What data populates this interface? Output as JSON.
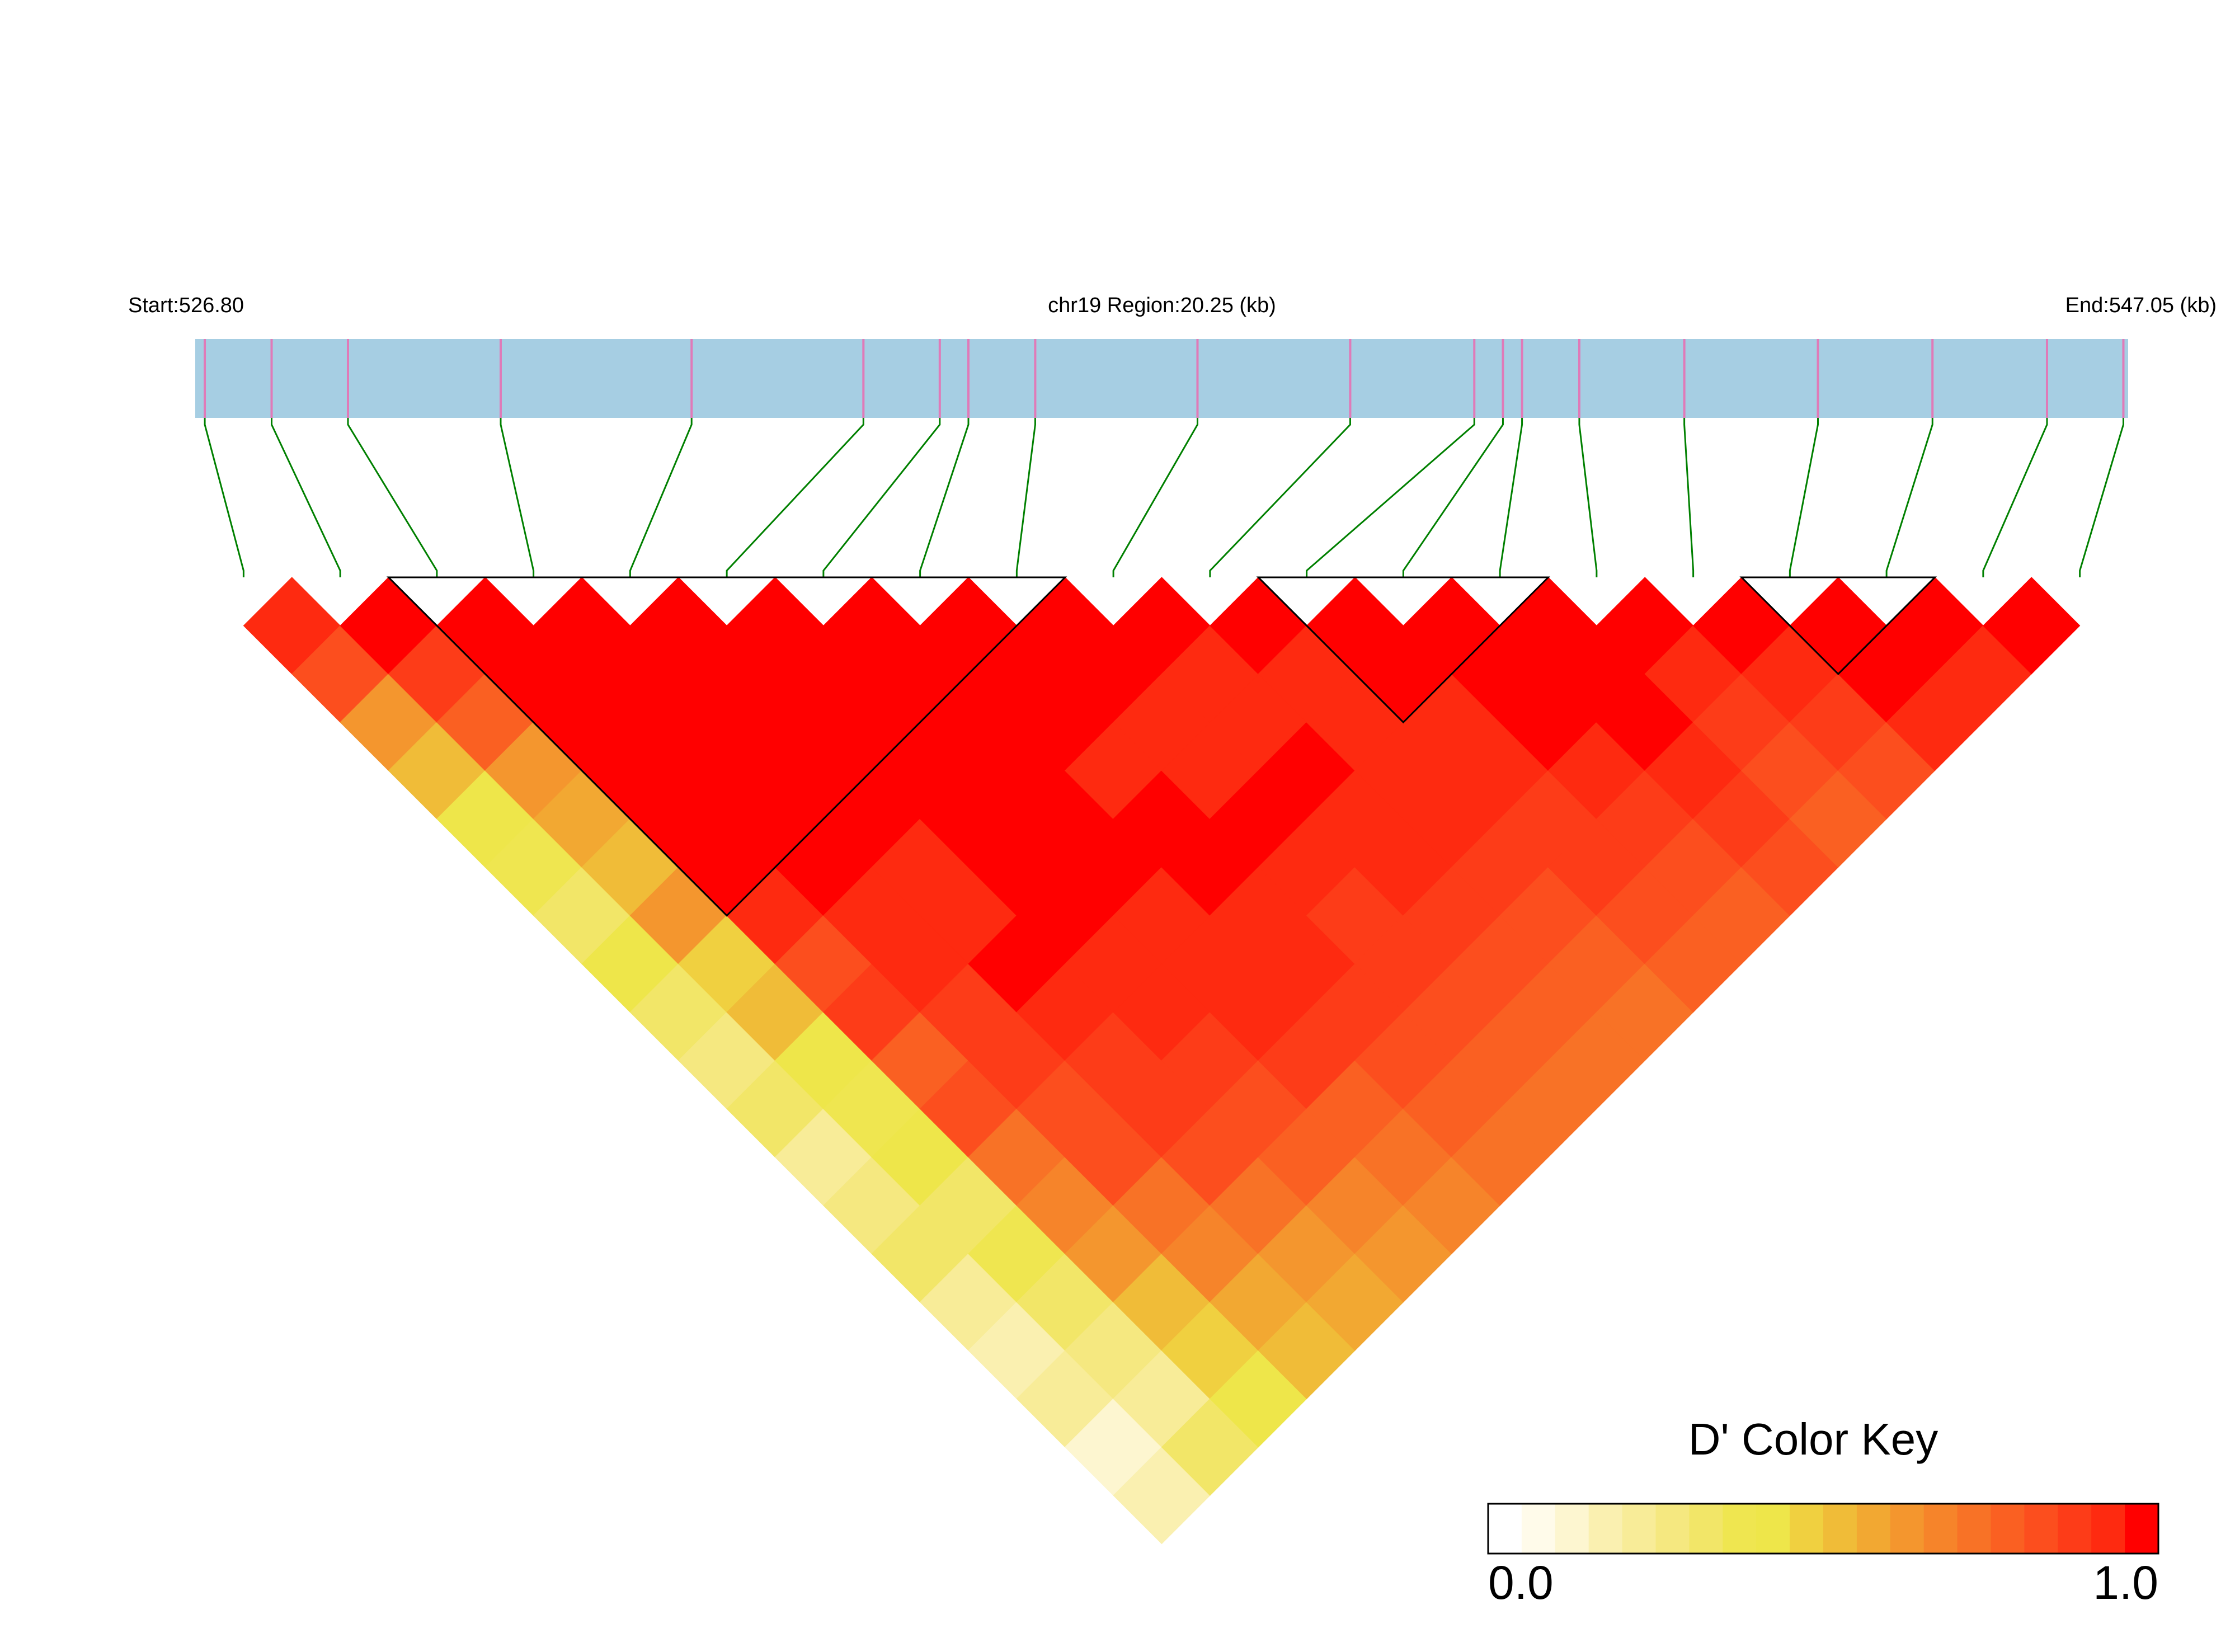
{
  "chart_data": {
    "type": "ld_heatmap",
    "region": {
      "start_label": "Start:526.80",
      "center_label": "chr19 Region:20.25 (kb)",
      "end_label": "End:547.05 (kb)",
      "xlim": [
        526.8,
        547.05
      ]
    },
    "snp_positions": [
      526.9,
      527.6,
      528.4,
      530.0,
      532.0,
      533.8,
      534.6,
      534.9,
      535.6,
      537.3,
      538.9,
      540.2,
      540.5,
      540.7,
      541.3,
      542.4,
      543.8,
      545.0,
      546.2,
      547.0
    ],
    "track_color": "#a6cee3",
    "marker_color": "#e07ab8",
    "connector_color": "#008000",
    "ld_matrix": [
      [
        0.9,
        0.8,
        0.6,
        0.5,
        0.4,
        0.35,
        0.3,
        0.4,
        0.3,
        0.25,
        0.3,
        0.2,
        0.25,
        0.3,
        0.2,
        0.15,
        0.2,
        0.1,
        0.15
      ],
      [
        0.95,
        0.85,
        0.75,
        0.6,
        0.55,
        0.5,
        0.6,
        0.45,
        0.5,
        0.4,
        0.35,
        0.4,
        0.3,
        0.35,
        0.3,
        0.25,
        0.2,
        0.3
      ],
      [
        1,
        1,
        1,
        0.98,
        1,
        0.95,
        0.9,
        0.8,
        0.85,
        0.75,
        0.8,
        0.7,
        0.65,
        0.6,
        0.5,
        0.45,
        0.4
      ],
      [
        1,
        1,
        1,
        1,
        0.98,
        0.95,
        0.92,
        0.9,
        0.88,
        0.85,
        0.8,
        0.82,
        0.7,
        0.65,
        0.55,
        0.5
      ],
      [
        1,
        1,
        1,
        0.97,
        0.95,
        0.93,
        0.9,
        0.95,
        0.9,
        0.88,
        0.85,
        0.8,
        0.7,
        0.6,
        0.55
      ],
      [
        1,
        1,
        1,
        0.98,
        0.96,
        0.97,
        0.95,
        0.93,
        0.9,
        0.88,
        0.8,
        0.75,
        0.65,
        0.6
      ],
      [
        1,
        1,
        0.98,
        0.97,
        0.95,
        0.96,
        0.94,
        0.92,
        0.9,
        0.85,
        0.78,
        0.7,
        0.65
      ],
      [
        1,
        0.97,
        0.95,
        0.93,
        0.96,
        0.95,
        0.92,
        0.9,
        0.88,
        0.8,
        0.75,
        0.7
      ],
      [
        0.98,
        0.95,
        0.9,
        0.93,
        0.95,
        0.9,
        0.88,
        0.85,
        0.82,
        0.75,
        0.7
      ],
      [
        0.95,
        0.92,
        0.9,
        0.95,
        0.92,
        0.9,
        0.85,
        0.8,
        0.78,
        0.7
      ],
      [
        0.95,
        0.93,
        0.9,
        0.92,
        0.9,
        0.88,
        0.8,
        0.75,
        0.72
      ],
      [
        0.97,
        0.95,
        0.92,
        0.9,
        0.88,
        0.85,
        0.8,
        0.75
      ],
      [
        1,
        0.98,
        0.95,
        0.9,
        0.85,
        0.8,
        0.78
      ],
      [
        1,
        1,
        0.95,
        0.9,
        0.85,
        0.8
      ],
      [
        0.95,
        0.9,
        0.88,
        0.8,
        0.75
      ],
      [
        0.95,
        0.9,
        0.85,
        0.8
      ],
      [
        1,
        0.98,
        0.9
      ],
      [
        0.95,
        0.9
      ],
      [
        0.98
      ]
    ],
    "ld_blocks": [
      {
        "start": 2,
        "end": 8
      },
      {
        "start": 11,
        "end": 13
      },
      {
        "start": 16,
        "end": 17
      }
    ],
    "color_key": {
      "title": "D' Color Key",
      "range": [
        0,
        1
      ],
      "ticks": [
        {
          "value": 0,
          "label": "0.0"
        },
        {
          "value": 1,
          "label": "1.0"
        }
      ],
      "colors": [
        "#ffffff",
        "#fffbea",
        "#fdf6d0",
        "#faf0b0",
        "#f8ec98",
        "#f5e880",
        "#f2e668",
        "#efe650",
        "#eee64a",
        "#f0d040",
        "#f0bc38",
        "#f2a832",
        "#f4962e",
        "#f6842a",
        "#f87226",
        "#fa6022",
        "#fc4e1e",
        "#fd3c18",
        "#fe2a10",
        "#ff0000"
      ]
    }
  }
}
